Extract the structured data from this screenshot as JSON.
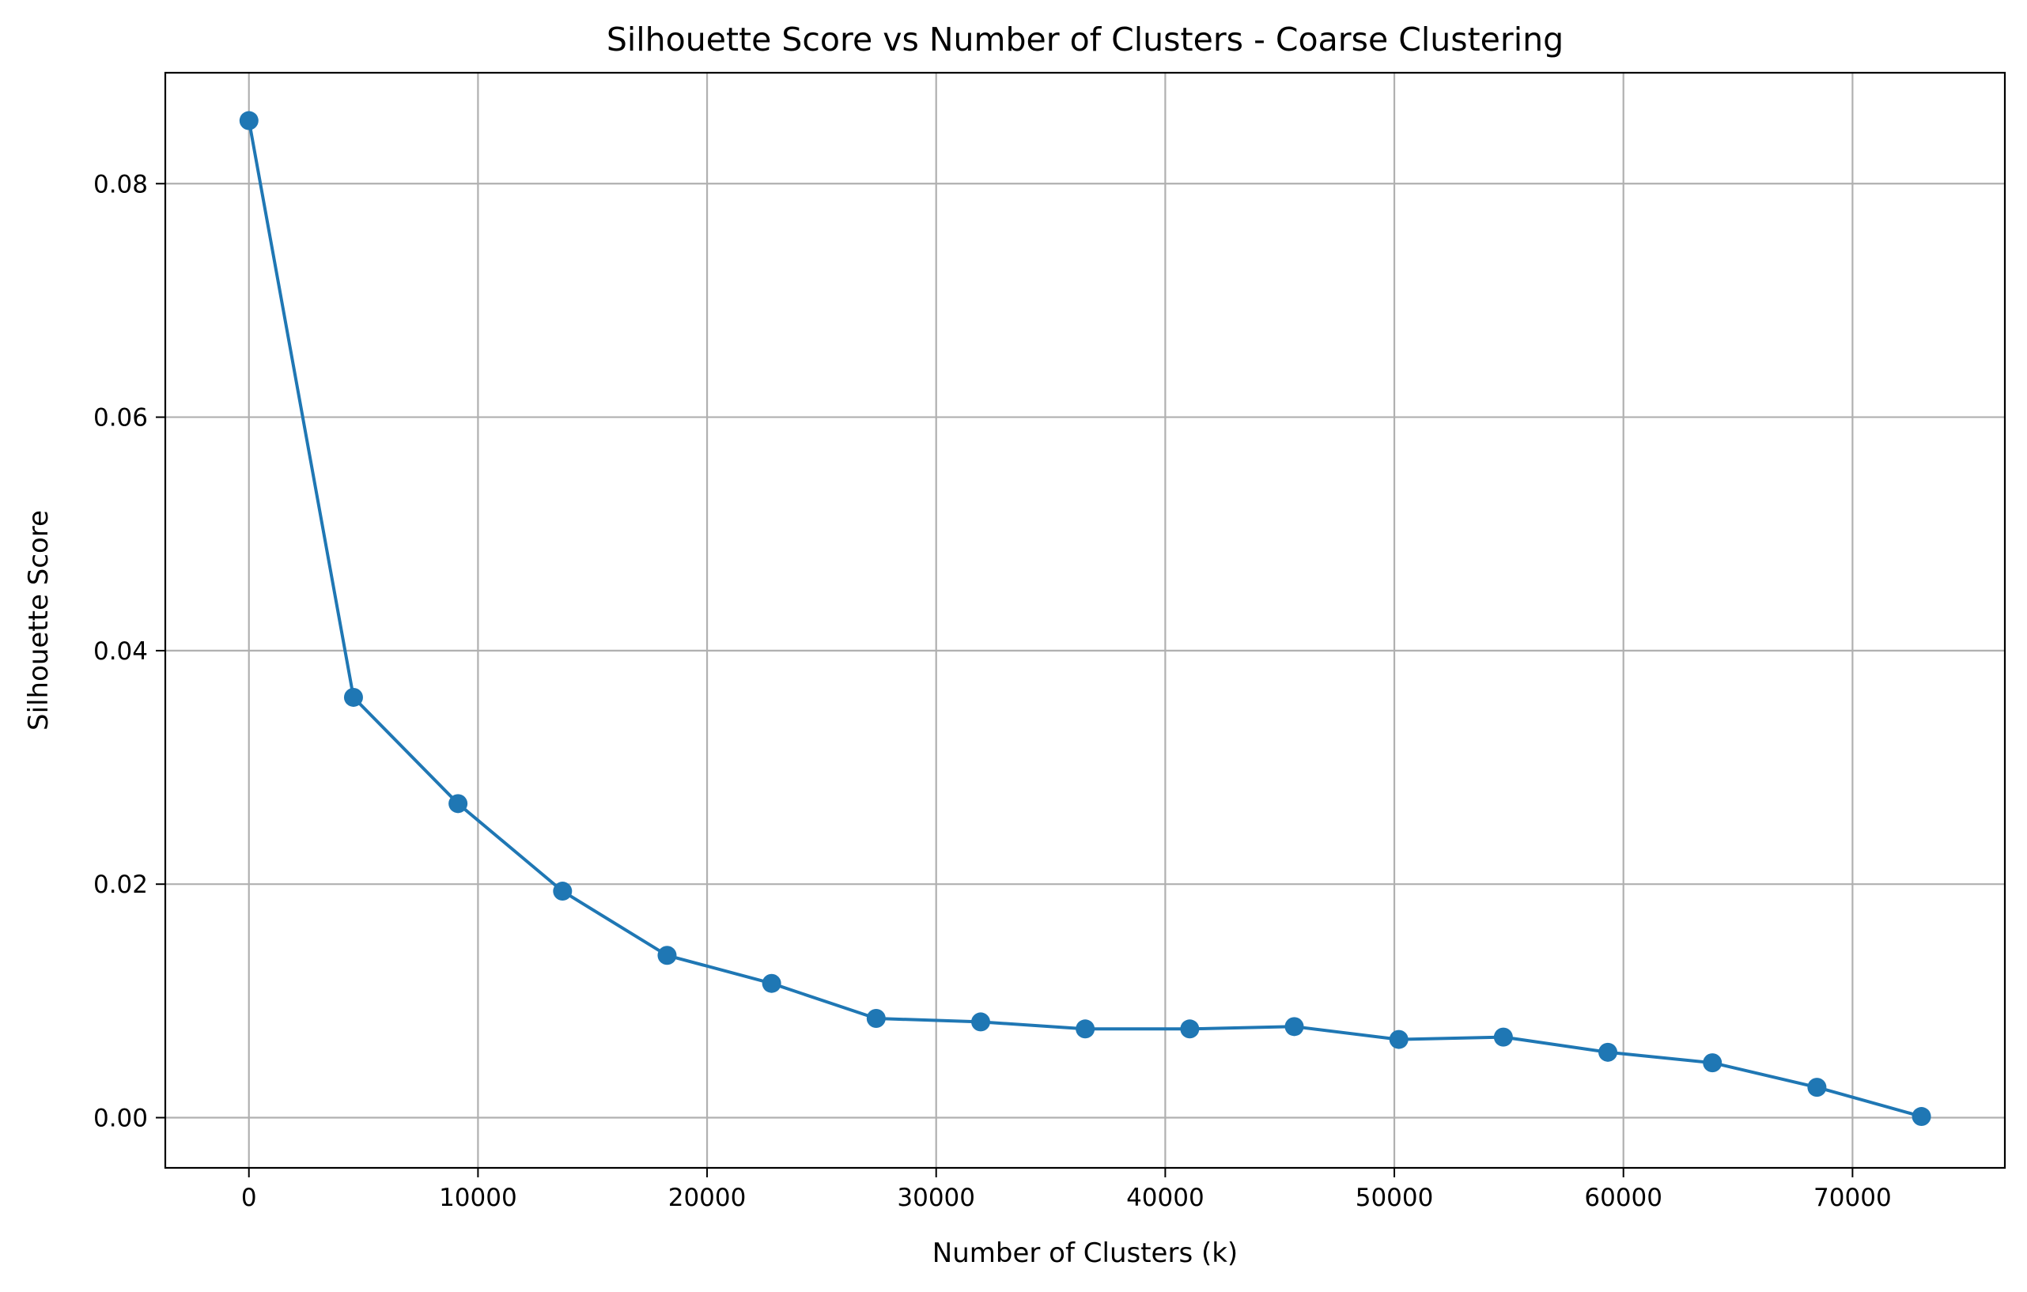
{
  "chart_data": {
    "type": "line",
    "title": "Silhouette Score vs Number of Clusters - Coarse Clustering",
    "xlabel": "Number of Clusters (k)",
    "ylabel": "Silhouette Score",
    "xlim": [
      -3650,
      76650
    ],
    "ylim": [
      -0.0043,
      0.0895
    ],
    "grid": true,
    "xticks": [
      0,
      10000,
      20000,
      30000,
      40000,
      50000,
      60000,
      70000
    ],
    "xtick_labels": [
      "0",
      "10000",
      "20000",
      "30000",
      "40000",
      "50000",
      "60000",
      "70000"
    ],
    "yticks": [
      0.0,
      0.02,
      0.04,
      0.06,
      0.08
    ],
    "ytick_labels": [
      "0.00",
      "0.02",
      "0.04",
      "0.06",
      "0.08"
    ],
    "series": [
      {
        "color": "#1f77b4",
        "marker": "circle",
        "x": [
          2,
          4565,
          9128,
          13691,
          18254,
          22817,
          27380,
          31943,
          36506,
          41069,
          45632,
          50195,
          54758,
          59321,
          63884,
          68447,
          73010
        ],
        "y": [
          0.0854,
          0.036,
          0.0269,
          0.0194,
          0.0139,
          0.0115,
          0.0085,
          0.0082,
          0.0076,
          0.0076,
          0.0078,
          0.0067,
          0.0069,
          0.0056,
          0.0047,
          0.0026,
          0.0001
        ]
      }
    ]
  }
}
